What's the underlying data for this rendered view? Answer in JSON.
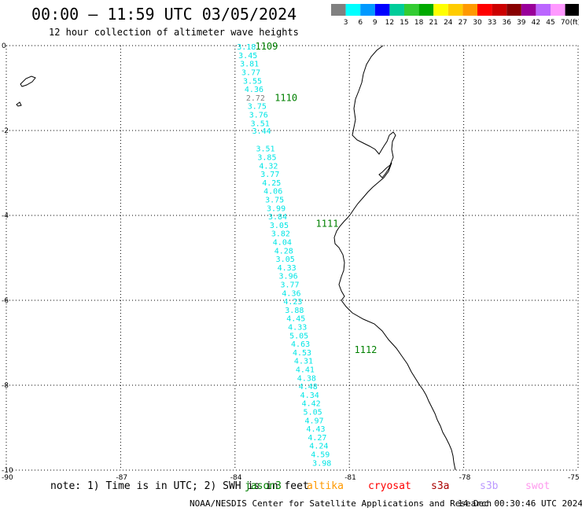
{
  "header": {
    "title": "00:00 — 11:59 UTC 03/05/2024",
    "subtitle": "12 hour collection of altimeter wave heights"
  },
  "legend": {
    "colors": [
      "#808080",
      "#00ffff",
      "#0099ff",
      "#0000ff",
      "#00cc99",
      "#33cc33",
      "#00aa00",
      "#ffff00",
      "#ffcc00",
      "#ff9900",
      "#ff0000",
      "#cc0000",
      "#880000",
      "#990099",
      "#bb66ff",
      "#ff99ff",
      "#000000"
    ],
    "labels": [
      "3",
      "6",
      "9",
      "12",
      "15",
      "18",
      "21",
      "24",
      "27",
      "30",
      "33",
      "36",
      "39",
      "42",
      "45",
      "70"
    ],
    "unit": "(ft)"
  },
  "map": {
    "lat_labels": [
      "0",
      "-2",
      "-4",
      "-6",
      "-8",
      "-10"
    ],
    "lon_labels": [
      "-90",
      "-87",
      "-84",
      "-81",
      "-78",
      "-75"
    ],
    "lat_range": [
      -10,
      0
    ],
    "lon_range": [
      -90,
      -75
    ],
    "track_color": "#00e5e5",
    "pass_label_color": "#008000",
    "anomaly_color": "#808080",
    "readings": [
      {
        "v": "3.18",
        "lat": -0.02,
        "lon": -83.95
      },
      {
        "v": "3.45",
        "lat": -0.22,
        "lon": -83.91
      },
      {
        "v": "3.81",
        "lat": -0.42,
        "lon": -83.87
      },
      {
        "v": "3.77",
        "lat": -0.62,
        "lon": -83.83
      },
      {
        "v": "3.55",
        "lat": -0.82,
        "lon": -83.79
      },
      {
        "v": "4.36",
        "lat": -1.02,
        "lon": -83.75
      },
      {
        "v": "2.72",
        "lat": -1.22,
        "lon": -83.71,
        "gray": true
      },
      {
        "v": "3.75",
        "lat": -1.42,
        "lon": -83.67
      },
      {
        "v": "3.76",
        "lat": -1.62,
        "lon": -83.63
      },
      {
        "v": "3.51",
        "lat": -1.82,
        "lon": -83.59
      },
      {
        "v": "3.44",
        "lat": -2.0,
        "lon": -83.55
      },
      {
        "v": "3.51",
        "lat": -2.42,
        "lon": -83.45
      },
      {
        "v": "3.85",
        "lat": -2.62,
        "lon": -83.41
      },
      {
        "v": "4.32",
        "lat": -2.82,
        "lon": -83.37
      },
      {
        "v": "3.77",
        "lat": -3.02,
        "lon": -83.33
      },
      {
        "v": "4.25",
        "lat": -3.22,
        "lon": -83.29
      },
      {
        "v": "4.06",
        "lat": -3.42,
        "lon": -83.25
      },
      {
        "v": "3.75",
        "lat": -3.62,
        "lon": -83.21
      },
      {
        "v": "3.99",
        "lat": -3.82,
        "lon": -83.17
      },
      {
        "v": "3.84",
        "lat": -4.02,
        "lon": -83.13
      },
      {
        "v": "3.05",
        "lat": -4.22,
        "lon": -83.09
      },
      {
        "v": "3.82",
        "lat": -4.42,
        "lon": -83.05
      },
      {
        "v": "4.04",
        "lat": -4.62,
        "lon": -83.01
      },
      {
        "v": "4.28",
        "lat": -4.82,
        "lon": -82.97
      },
      {
        "v": "3.05",
        "lat": -5.02,
        "lon": -82.93
      },
      {
        "v": "4.33",
        "lat": -5.22,
        "lon": -82.89
      },
      {
        "v": "3.96",
        "lat": -5.42,
        "lon": -82.85
      },
      {
        "v": "3.77",
        "lat": -5.62,
        "lon": -82.81
      },
      {
        "v": "4.36",
        "lat": -5.82,
        "lon": -82.77
      },
      {
        "v": "4.23",
        "lat": -6.02,
        "lon": -82.73
      },
      {
        "v": "3.88",
        "lat": -6.22,
        "lon": -82.69
      },
      {
        "v": "4.45",
        "lat": -6.42,
        "lon": -82.65
      },
      {
        "v": "4.33",
        "lat": -6.62,
        "lon": -82.61
      },
      {
        "v": "5.05",
        "lat": -6.82,
        "lon": -82.57
      },
      {
        "v": "4.63",
        "lat": -7.02,
        "lon": -82.53
      },
      {
        "v": "4.53",
        "lat": -7.22,
        "lon": -82.49
      },
      {
        "v": "4.31",
        "lat": -7.42,
        "lon": -82.45
      },
      {
        "v": "4.41",
        "lat": -7.62,
        "lon": -82.41
      },
      {
        "v": "4.38",
        "lat": -7.82,
        "lon": -82.37
      },
      {
        "v": "4.48",
        "lat": -8.02,
        "lon": -82.33
      },
      {
        "v": "4.34",
        "lat": -8.22,
        "lon": -82.29
      },
      {
        "v": "4.42",
        "lat": -8.42,
        "lon": -82.25
      },
      {
        "v": "5.05",
        "lat": -8.62,
        "lon": -82.21
      },
      {
        "v": "4.97",
        "lat": -8.82,
        "lon": -82.17
      },
      {
        "v": "4.43",
        "lat": -9.02,
        "lon": -82.13
      },
      {
        "v": "4.27",
        "lat": -9.22,
        "lon": -82.09
      },
      {
        "v": "4.24",
        "lat": -9.42,
        "lon": -82.05
      },
      {
        "v": "4.59",
        "lat": -9.62,
        "lon": -82.01
      },
      {
        "v": "3.98",
        "lat": -9.82,
        "lon": -81.97
      }
    ],
    "passes": [
      {
        "id": "1109",
        "lat": 0.0,
        "lon": -83.47
      },
      {
        "id": "1110",
        "lat": -1.21,
        "lon": -82.96
      },
      {
        "id": "1111",
        "lat": -4.18,
        "lon": -81.88
      },
      {
        "id": "1112",
        "lat": -7.15,
        "lon": -80.87
      }
    ]
  },
  "footer": {
    "note": "note: 1) Time is in UTC; 2) SWH is in feet",
    "satellites": [
      {
        "name": "jason3",
        "color": "#008000"
      },
      {
        "name": "altika",
        "color": "#ff9900"
      },
      {
        "name": "cryosat",
        "color": "#ff0000"
      },
      {
        "name": "s3a",
        "color": "#aa0000"
      },
      {
        "name": "s3b",
        "color": "#bb99ff"
      },
      {
        "name": "swot",
        "color": "#ff99ee"
      }
    ],
    "credit": "NOAA/NESDIS Center for Satellite Applications and Research",
    "timestamp": "14 Dec 00:30:46 UTC 2024"
  }
}
